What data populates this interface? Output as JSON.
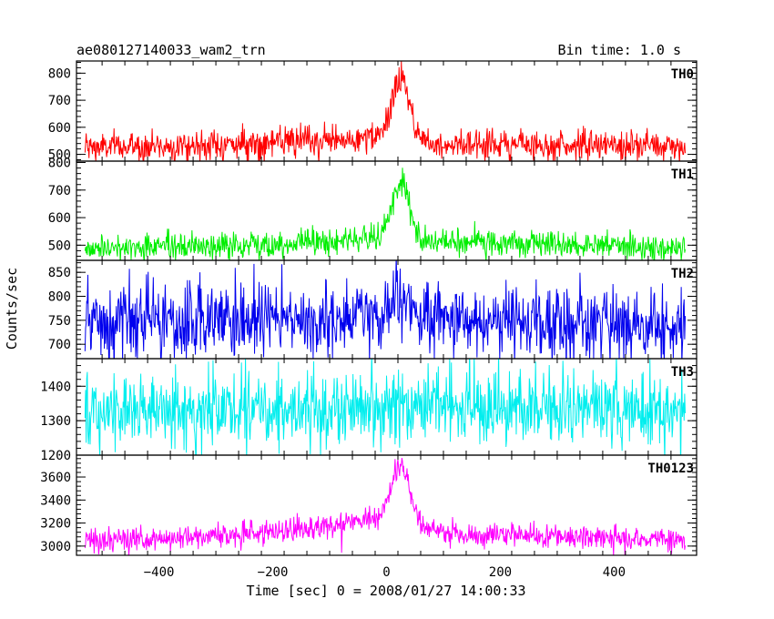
{
  "chart_data": {
    "type": "line",
    "title": "ae080127140033_wam2_trn",
    "subtitle": "Bin time: 1.0 s",
    "xlabel": "Time [sec] 0 = 2008/01/27 14:00:33",
    "ylabel": "Counts/sec",
    "xlim": [
      -545,
      545
    ],
    "x_ticks": [
      -400,
      -200,
      0,
      200,
      400
    ],
    "x_data_range": [
      -530,
      525
    ],
    "grid": false,
    "panels": [
      {
        "name": "TH0",
        "color": "#ff0000",
        "ylim": [
          475,
          845
        ],
        "y_ticks": [
          500,
          600,
          700,
          800
        ],
        "baseline": [
          [
            -530,
            525
          ],
          [
            -300,
            535
          ],
          [
            -100,
            550
          ],
          [
            0,
            560
          ],
          [
            100,
            540
          ],
          [
            300,
            535
          ],
          [
            525,
            530
          ]
        ],
        "noise": 28,
        "peak": {
          "center": 25,
          "height": 230,
          "width": 15
        }
      },
      {
        "name": "TH1",
        "color": "#00ee00",
        "ylim": [
          445,
          805
        ],
        "y_ticks": [
          500,
          600,
          700,
          800
        ],
        "baseline": [
          [
            -530,
            490
          ],
          [
            -300,
            495
          ],
          [
            -100,
            515
          ],
          [
            0,
            530
          ],
          [
            100,
            510
          ],
          [
            300,
            500
          ],
          [
            525,
            495
          ]
        ],
        "noise": 25,
        "peak": {
          "center": 25,
          "height": 200,
          "width": 15
        }
      },
      {
        "name": "TH2",
        "color": "#0000ee",
        "ylim": [
          670,
          875
        ],
        "y_ticks": [
          700,
          750,
          800,
          850
        ],
        "baseline": [
          [
            -530,
            740
          ],
          [
            -300,
            745
          ],
          [
            0,
            755
          ],
          [
            300,
            745
          ],
          [
            525,
            740
          ]
        ],
        "noise": 40,
        "peak": {
          "center": 25,
          "height": 40,
          "width": 15
        }
      },
      {
        "name": "TH3",
        "color": "#00eeee",
        "ylim": [
          1200,
          1480
        ],
        "y_ticks": [
          1200,
          1300,
          1400
        ],
        "baseline": [
          [
            -530,
            1320
          ],
          [
            -300,
            1330
          ],
          [
            0,
            1345
          ],
          [
            300,
            1335
          ],
          [
            525,
            1325
          ]
        ],
        "noise": 55,
        "peak": {
          "center": 25,
          "height": 0,
          "width": 15
        }
      },
      {
        "name": "TH0123",
        "color": "#ff00ff",
        "ylim": [
          2920,
          3790
        ],
        "y_ticks": [
          3000,
          3200,
          3400,
          3600
        ],
        "baseline": [
          [
            -530,
            3040
          ],
          [
            -300,
            3090
          ],
          [
            -100,
            3170
          ],
          [
            0,
            3250
          ],
          [
            100,
            3110
          ],
          [
            300,
            3080
          ],
          [
            525,
            3050
          ]
        ],
        "noise": 55,
        "peak": {
          "center": 25,
          "height": 500,
          "width": 15
        }
      }
    ]
  }
}
